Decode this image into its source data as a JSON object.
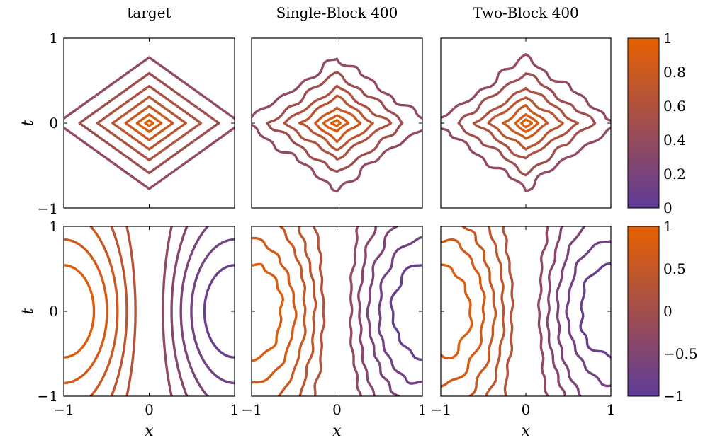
{
  "chart_data": {
    "type": "contour",
    "titles": [
      "target",
      "Single-Block 400",
      "Two-Block 400"
    ],
    "xlabel": "x",
    "ylabel": "t",
    "xlim": [
      -1,
      1
    ],
    "ylim": [
      -1,
      1
    ],
    "xticks": [
      "−1",
      "0",
      "1"
    ],
    "yticks": [
      "−1",
      "0",
      "1"
    ],
    "rows": [
      {
        "name": "row-1",
        "field": "smooth-even",
        "levels": [
          0.96,
          0.88,
          0.78,
          0.68,
          0.58,
          0.48,
          0.38
        ],
        "colorbar": {
          "range": [
            0,
            1
          ],
          "ticks": [
            "1",
            "0.8",
            "0.6",
            "0.4",
            "0.2",
            "0"
          ]
        }
      },
      {
        "name": "row-2",
        "field": "odd-in-x",
        "levels": [
          0.85,
          0.7,
          0.55,
          0.4,
          0.25,
          -0.25,
          -0.4,
          -0.55,
          -0.7,
          -0.85
        ],
        "colorbar": {
          "range": [
            -1,
            1
          ],
          "ticks": [
            "1",
            "0.5",
            "0",
            "−0.5",
            "−1"
          ]
        }
      }
    ],
    "colors": {
      "low": "#5e3c99",
      "high": "#e66101"
    },
    "grid": false
  }
}
